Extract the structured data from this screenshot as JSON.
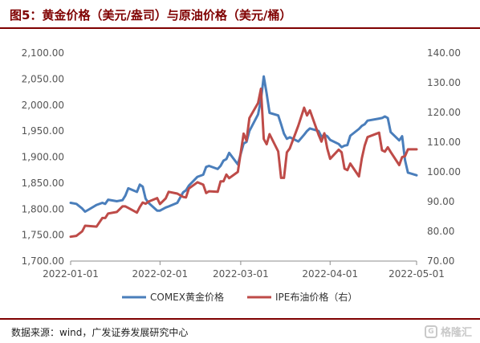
{
  "title": "图5：黄金价格（美元/盎司）与原油价格（美元/桶）",
  "source": "数据来源：wind，广发证券发展研究中心",
  "watermark": "格隆汇",
  "colors": {
    "gold": "#4a7ebb",
    "oil": "#be4b48",
    "frame": "#7f0000"
  },
  "chart_data": {
    "type": "line",
    "x_ticks": [
      "2022-01-01",
      "2022-02-01",
      "2022-03-01",
      "2022-04-01",
      "2022-05-01"
    ],
    "y_left": {
      "min": 1700,
      "max": 2100,
      "ticks": [
        "1,700.00",
        "1,750.00",
        "1,800.00",
        "1,850.00",
        "1,900.00",
        "1,950.00",
        "2,000.00",
        "2,050.00",
        "2,100.00"
      ]
    },
    "y_right": {
      "min": 70,
      "max": 140,
      "ticks": [
        "70.00",
        "80.00",
        "90.00",
        "100.00",
        "110.00",
        "120.00",
        "130.00",
        "140.00"
      ]
    },
    "series": [
      {
        "name": "COMEX黄金价格",
        "axis": "left",
        "color": "#4a7ebb",
        "x": [
          "2022-01-01",
          "2022-01-03",
          "2022-01-05",
          "2022-01-06",
          "2022-01-07",
          "2022-01-10",
          "2022-01-12",
          "2022-01-13",
          "2022-01-14",
          "2022-01-17",
          "2022-01-19",
          "2022-01-20",
          "2022-01-21",
          "2022-01-24",
          "2022-01-25",
          "2022-01-26",
          "2022-01-27",
          "2022-01-28",
          "2022-01-31",
          "2022-02-01",
          "2022-02-03",
          "2022-02-04",
          "2022-02-07",
          "2022-02-09",
          "2022-02-10",
          "2022-02-11",
          "2022-02-14",
          "2022-02-16",
          "2022-02-17",
          "2022-02-18",
          "2022-02-21",
          "2022-02-22",
          "2022-02-23",
          "2022-02-24",
          "2022-02-25",
          "2022-02-28",
          "2022-03-02",
          "2022-03-03",
          "2022-03-04",
          "2022-03-07",
          "2022-03-08",
          "2022-03-09",
          "2022-03-10",
          "2022-03-11",
          "2022-03-14",
          "2022-03-15",
          "2022-03-16",
          "2022-03-17",
          "2022-03-18",
          "2022-03-21",
          "2022-03-23",
          "2022-03-24",
          "2022-03-25",
          "2022-03-28",
          "2022-03-29",
          "2022-03-30",
          "2022-03-31",
          "2022-04-01",
          "2022-04-04",
          "2022-04-05",
          "2022-04-06",
          "2022-04-07",
          "2022-04-08",
          "2022-04-11",
          "2022-04-12",
          "2022-04-13",
          "2022-04-14",
          "2022-04-18",
          "2022-04-19",
          "2022-04-20",
          "2022-04-21",
          "2022-04-22",
          "2022-04-25",
          "2022-04-26",
          "2022-04-27",
          "2022-04-28",
          "2022-05-01"
        ],
        "values": [
          1812,
          1810,
          1801,
          1795,
          1798,
          1808,
          1812,
          1810,
          1818,
          1815,
          1817,
          1826,
          1840,
          1833,
          1847,
          1843,
          1820,
          1812,
          1797,
          1797,
          1803,
          1805,
          1812,
          1832,
          1836,
          1845,
          1862,
          1866,
          1881,
          1883,
          1877,
          1883,
          1893,
          1896,
          1908,
          1886,
          1926,
          1929,
          1950,
          1982,
          2010,
          2055,
          2022,
          1985,
          1980,
          1963,
          1945,
          1935,
          1938,
          1930,
          1943,
          1950,
          1955,
          1950,
          1939,
          1943,
          1940,
          1933,
          1925,
          1919,
          1922,
          1923,
          1941,
          1954,
          1960,
          1963,
          1970,
          1974,
          1975,
          1978,
          1975,
          1948,
          1932,
          1940,
          1894,
          1870,
          1865
        ]
      },
      {
        "name": "IPE布油价格（右）",
        "axis": "right",
        "color": "#be4b48",
        "x": [
          "2022-01-01",
          "2022-01-03",
          "2022-01-05",
          "2022-01-06",
          "2022-01-07",
          "2022-01-10",
          "2022-01-12",
          "2022-01-13",
          "2022-01-14",
          "2022-01-17",
          "2022-01-19",
          "2022-01-20",
          "2022-01-21",
          "2022-01-24",
          "2022-01-25",
          "2022-01-26",
          "2022-01-27",
          "2022-01-28",
          "2022-01-31",
          "2022-02-01",
          "2022-02-03",
          "2022-02-04",
          "2022-02-07",
          "2022-02-09",
          "2022-02-10",
          "2022-02-11",
          "2022-02-14",
          "2022-02-16",
          "2022-02-17",
          "2022-02-18",
          "2022-02-21",
          "2022-02-22",
          "2022-02-23",
          "2022-02-24",
          "2022-02-25",
          "2022-02-28",
          "2022-03-02",
          "2022-03-03",
          "2022-03-04",
          "2022-03-07",
          "2022-03-08",
          "2022-03-09",
          "2022-03-10",
          "2022-03-11",
          "2022-03-14",
          "2022-03-15",
          "2022-03-16",
          "2022-03-17",
          "2022-03-18",
          "2022-03-21",
          "2022-03-23",
          "2022-03-24",
          "2022-03-25",
          "2022-03-28",
          "2022-03-29",
          "2022-03-30",
          "2022-03-31",
          "2022-04-01",
          "2022-04-04",
          "2022-04-05",
          "2022-04-06",
          "2022-04-07",
          "2022-04-08",
          "2022-04-11",
          "2022-04-12",
          "2022-04-13",
          "2022-04-14",
          "2022-04-18",
          "2022-04-19",
          "2022-04-20",
          "2022-04-21",
          "2022-04-22",
          "2022-04-25",
          "2022-04-26",
          "2022-04-27",
          "2022-04-28",
          "2022-05-01"
        ],
        "values": [
          78.2,
          78.5,
          80.0,
          81.9,
          81.8,
          81.6,
          84.5,
          84.5,
          86.0,
          86.5,
          88.4,
          88.4,
          87.9,
          86.3,
          88.2,
          89.7,
          89.3,
          90.0,
          91.2,
          89.2,
          91.1,
          93.3,
          92.7,
          91.6,
          91.4,
          94.4,
          96.5,
          95.7,
          92.9,
          93.5,
          93.3,
          96.8,
          96.8,
          99.1,
          97.9,
          100.0,
          112.9,
          110.5,
          118.1,
          123.2,
          127.98,
          111.1,
          109.3,
          112.7,
          106.9,
          98.0,
          98.0,
          106.6,
          107.9,
          115.6,
          121.6,
          119.0,
          120.7,
          112.5,
          110.2,
          113.0,
          107.9,
          104.4,
          107.5,
          106.6,
          101.1,
          100.6,
          102.8,
          98.5,
          104.6,
          108.8,
          111.7,
          113.2,
          107.3,
          106.8,
          108.3,
          106.7,
          102.3,
          104.99,
          105.3,
          107.6,
          107.6
        ]
      }
    ],
    "legend_position": "bottom"
  }
}
